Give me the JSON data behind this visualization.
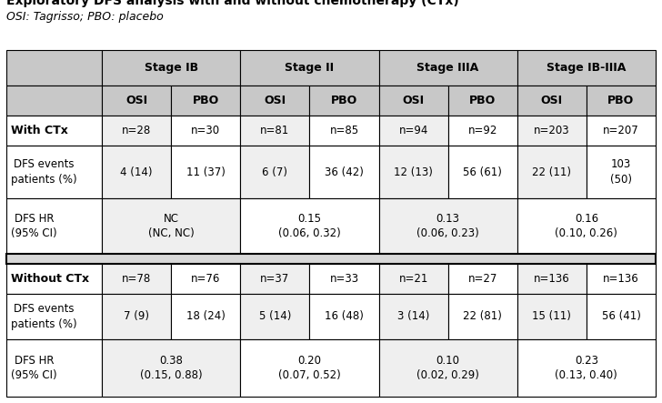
{
  "title": "Exploratory DFS analysis with and without chemotherapy (CTx)",
  "subtitle": "OSI: Tagrisso; PBO: placebo",
  "bg_header": "#c8c8c8",
  "bg_white": "#ffffff",
  "bg_light": "#efefef",
  "bg_sep": "#d8d8d8",
  "border_color": "#000000",
  "with_ctx": {
    "n_vals": [
      "n=28",
      "n=30",
      "n=81",
      "n=85",
      "n=94",
      "n=92",
      "n=203",
      "n=207"
    ],
    "event_vals": [
      "4 (14)",
      "11 (37)",
      "6 (7)",
      "36 (42)",
      "12 (13)",
      "56 (61)",
      "22 (11)",
      "103\n(50)"
    ],
    "hr_vals": [
      "NC\n(NC, NC)",
      "0.15\n(0.06, 0.32)",
      "0.13\n(0.06, 0.23)",
      "0.16\n(0.10, 0.26)"
    ]
  },
  "without_ctx": {
    "n_vals": [
      "n=78",
      "n=76",
      "n=37",
      "n=33",
      "n=21",
      "n=27",
      "n=136",
      "n=136"
    ],
    "event_vals": [
      "7 (9)",
      "18 (24)",
      "5 (14)",
      "16 (48)",
      "3 (14)",
      "22 (81)",
      "15 (11)",
      "56 (41)"
    ],
    "hr_vals": [
      "0.38\n(0.15, 0.88)",
      "0.20\n(0.07, 0.52)",
      "0.10\n(0.02, 0.29)",
      "0.23\n(0.13, 0.40)"
    ]
  }
}
